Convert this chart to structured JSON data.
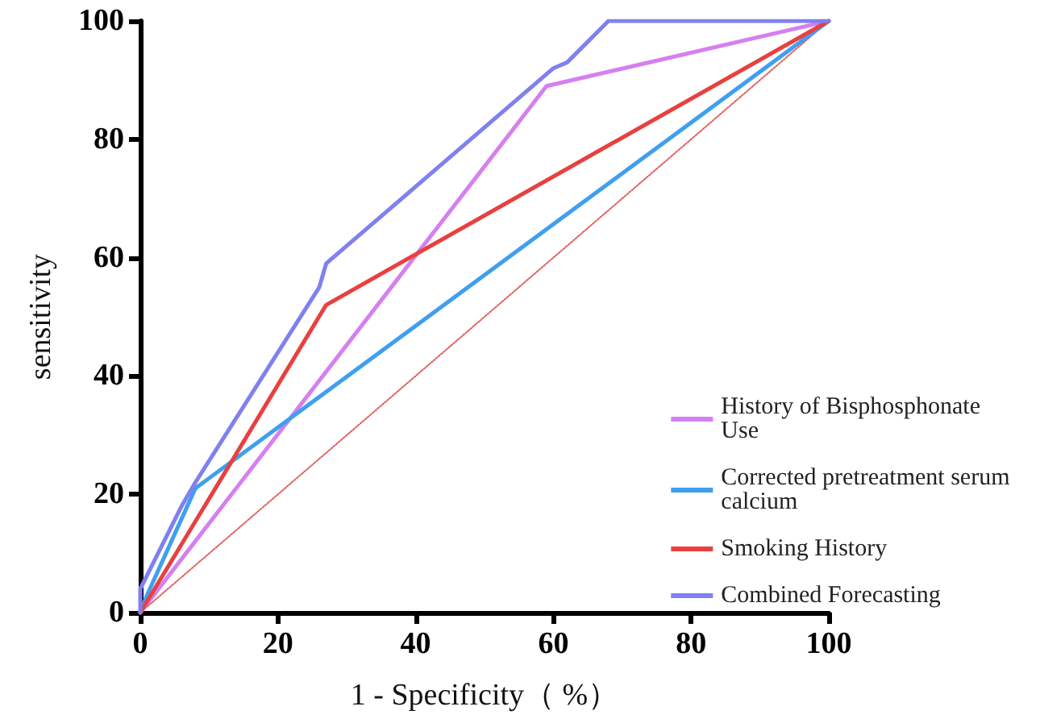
{
  "chart_data": {
    "type": "line",
    "xlabel": "1 - Specificity（ %）",
    "ylabel": "sensitivity",
    "xlim": [
      0,
      100
    ],
    "xticks": [
      0,
      20,
      40,
      60,
      80,
      100
    ],
    "ylim": [
      0,
      100
    ],
    "yticks": [
      0,
      20,
      40,
      60,
      80,
      100
    ],
    "grid": false,
    "legend": "right",
    "marker": "none",
    "line_style": "solid",
    "series": [
      {
        "name": "History of Bisphosphonate Use",
        "color": "#d580f0",
        "x": [
          0,
          59,
          100
        ],
        "values": [
          0,
          89,
          100
        ]
      },
      {
        "name": "Corrected pretreatment serum calcium",
        "color": "#3f9ff0",
        "x": [
          0,
          1,
          8,
          100
        ],
        "values": [
          0,
          3,
          21,
          100
        ]
      },
      {
        "name": "Smoking History",
        "color": "#e84040",
        "x": [
          0,
          27,
          100
        ],
        "values": [
          0,
          52,
          100
        ]
      },
      {
        "name": "Combined Forecasting",
        "color": "#8080f0",
        "x": [
          0,
          0,
          6,
          8,
          26,
          27,
          60,
          62,
          68,
          100
        ],
        "values": [
          0,
          4,
          18,
          22,
          55,
          59,
          92,
          93,
          100,
          100
        ]
      },
      {
        "color": "#e06060",
        "line_style": "dotted",
        "x": [
          0,
          100
        ],
        "values": [
          0,
          100
        ]
      }
    ]
  }
}
